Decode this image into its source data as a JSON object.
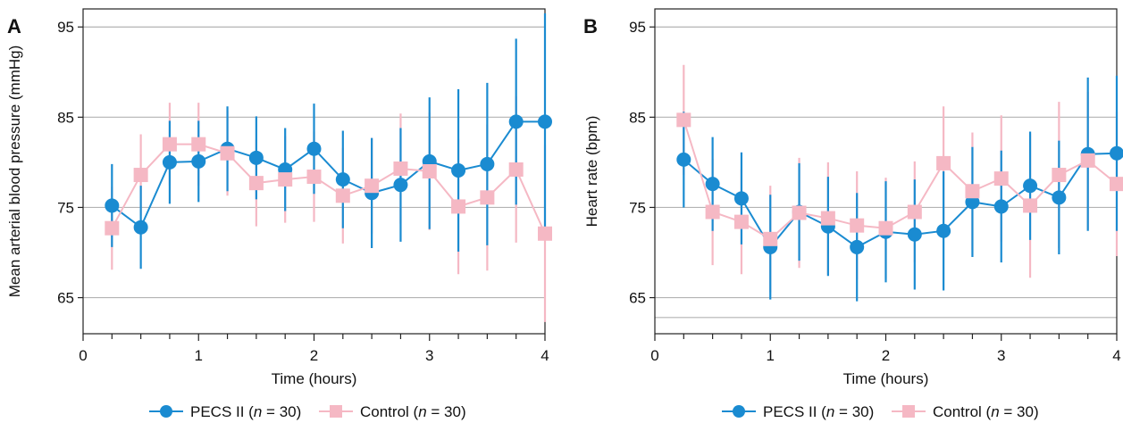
{
  "colors": {
    "pecs": "#1a8bd1",
    "control": "#f5b8c4",
    "grid": "#b3b3b3",
    "axis": "#222222"
  },
  "legend": [
    {
      "series": "PECS II",
      "n_label": "n",
      "eq": " = 30)",
      "prefix": "PECS II (",
      "marker": "circle"
    },
    {
      "series": "Control",
      "n_label": "n",
      "eq": " = 30)",
      "prefix": "Control (",
      "marker": "square"
    }
  ],
  "chart_data": [
    {
      "panel": "A",
      "type": "line",
      "xlabel": "Time (hours)",
      "ylabel": "Mean arterial blood pressure (mmHg)",
      "xlim": [
        0,
        4
      ],
      "ylim": [
        61,
        97
      ],
      "xticks": [
        "0",
        "1",
        "2",
        "3",
        "4"
      ],
      "yticks": [
        "65",
        "75",
        "85",
        "95"
      ],
      "grid": "horizontal",
      "x": [
        0.25,
        0.5,
        0.75,
        1.0,
        1.25,
        1.5,
        1.75,
        2.0,
        2.25,
        2.5,
        2.75,
        3.0,
        3.25,
        3.5,
        3.75,
        4.0
      ],
      "series": [
        {
          "name": "PECS II",
          "values": [
            75.2,
            72.8,
            80.0,
            80.1,
            81.5,
            80.5,
            79.2,
            81.5,
            78.1,
            76.6,
            77.5,
            80.1,
            79.1,
            79.8,
            84.5,
            84.5
          ],
          "error_low": [
            70.6,
            68.2,
            75.4,
            75.6,
            76.8,
            75.9,
            74.6,
            76.5,
            72.7,
            70.5,
            71.2,
            72.6,
            70.1,
            70.8,
            75.3,
            72.5
          ],
          "error_high": [
            79.8,
            77.4,
            84.6,
            84.6,
            86.2,
            85.1,
            83.8,
            86.5,
            83.5,
            82.7,
            83.8,
            87.2,
            88.1,
            88.8,
            93.7,
            96.5
          ]
        },
        {
          "name": "Control",
          "values": [
            72.7,
            78.6,
            82.0,
            82.0,
            81.0,
            77.7,
            78.1,
            78.4,
            76.3,
            77.4,
            79.3,
            79.0,
            75.1,
            76.1,
            79.2,
            72.1
          ],
          "error_low": [
            68.1,
            74.1,
            77.4,
            77.4,
            76.3,
            72.9,
            73.3,
            73.4,
            71.0,
            72.1,
            73.2,
            72.5,
            67.6,
            68.0,
            71.1,
            62.3
          ],
          "error_high": [
            77.3,
            83.1,
            86.6,
            86.6,
            85.7,
            82.5,
            82.9,
            83.4,
            81.6,
            82.7,
            85.4,
            85.5,
            82.6,
            84.2,
            87.3,
            81.9
          ]
        }
      ]
    },
    {
      "panel": "B",
      "type": "line",
      "xlabel": "Time (hours)",
      "ylabel": "Heart rate (bpm)",
      "xlim": [
        0,
        4
      ],
      "ylim": [
        61,
        97
      ],
      "xticks": [
        "0",
        "1",
        "2",
        "3",
        "4"
      ],
      "yticks": [
        "65",
        "75",
        "85",
        "95"
      ],
      "grid": "horizontal",
      "x": [
        0.25,
        0.5,
        0.75,
        1.0,
        1.25,
        1.5,
        1.75,
        2.0,
        2.25,
        2.5,
        2.75,
        3.0,
        3.25,
        3.5,
        3.75,
        4.0
      ],
      "series": [
        {
          "name": "PECS II",
          "values": [
            80.3,
            77.6,
            76.0,
            70.6,
            74.5,
            72.9,
            70.6,
            72.3,
            72.0,
            72.4,
            75.6,
            75.1,
            77.4,
            76.1,
            80.9,
            81.0
          ],
          "error_low": [
            75.0,
            72.4,
            70.9,
            64.8,
            69.1,
            67.4,
            64.6,
            66.7,
            65.9,
            65.8,
            69.5,
            68.9,
            71.4,
            69.8,
            72.4,
            72.4
          ],
          "error_high": [
            85.6,
            82.8,
            81.1,
            76.4,
            79.9,
            78.4,
            76.6,
            77.9,
            78.1,
            79.0,
            81.7,
            81.3,
            83.4,
            82.4,
            89.4,
            89.6
          ]
        },
        {
          "name": "Control",
          "values": [
            84.7,
            74.5,
            73.4,
            71.5,
            74.4,
            73.8,
            73.0,
            72.7,
            74.5,
            79.9,
            76.8,
            78.2,
            75.2,
            78.6,
            80.2,
            77.6
          ],
          "error_low": [
            78.6,
            68.6,
            67.6,
            65.6,
            68.3,
            67.6,
            67.0,
            67.1,
            68.9,
            73.6,
            70.3,
            71.2,
            67.2,
            70.5,
            72.6,
            69.6
          ],
          "error_high": [
            90.8,
            80.4,
            79.2,
            77.4,
            80.5,
            80.0,
            79.0,
            78.3,
            80.1,
            86.2,
            83.3,
            85.2,
            83.2,
            86.7,
            87.8,
            85.6
          ]
        }
      ]
    }
  ]
}
